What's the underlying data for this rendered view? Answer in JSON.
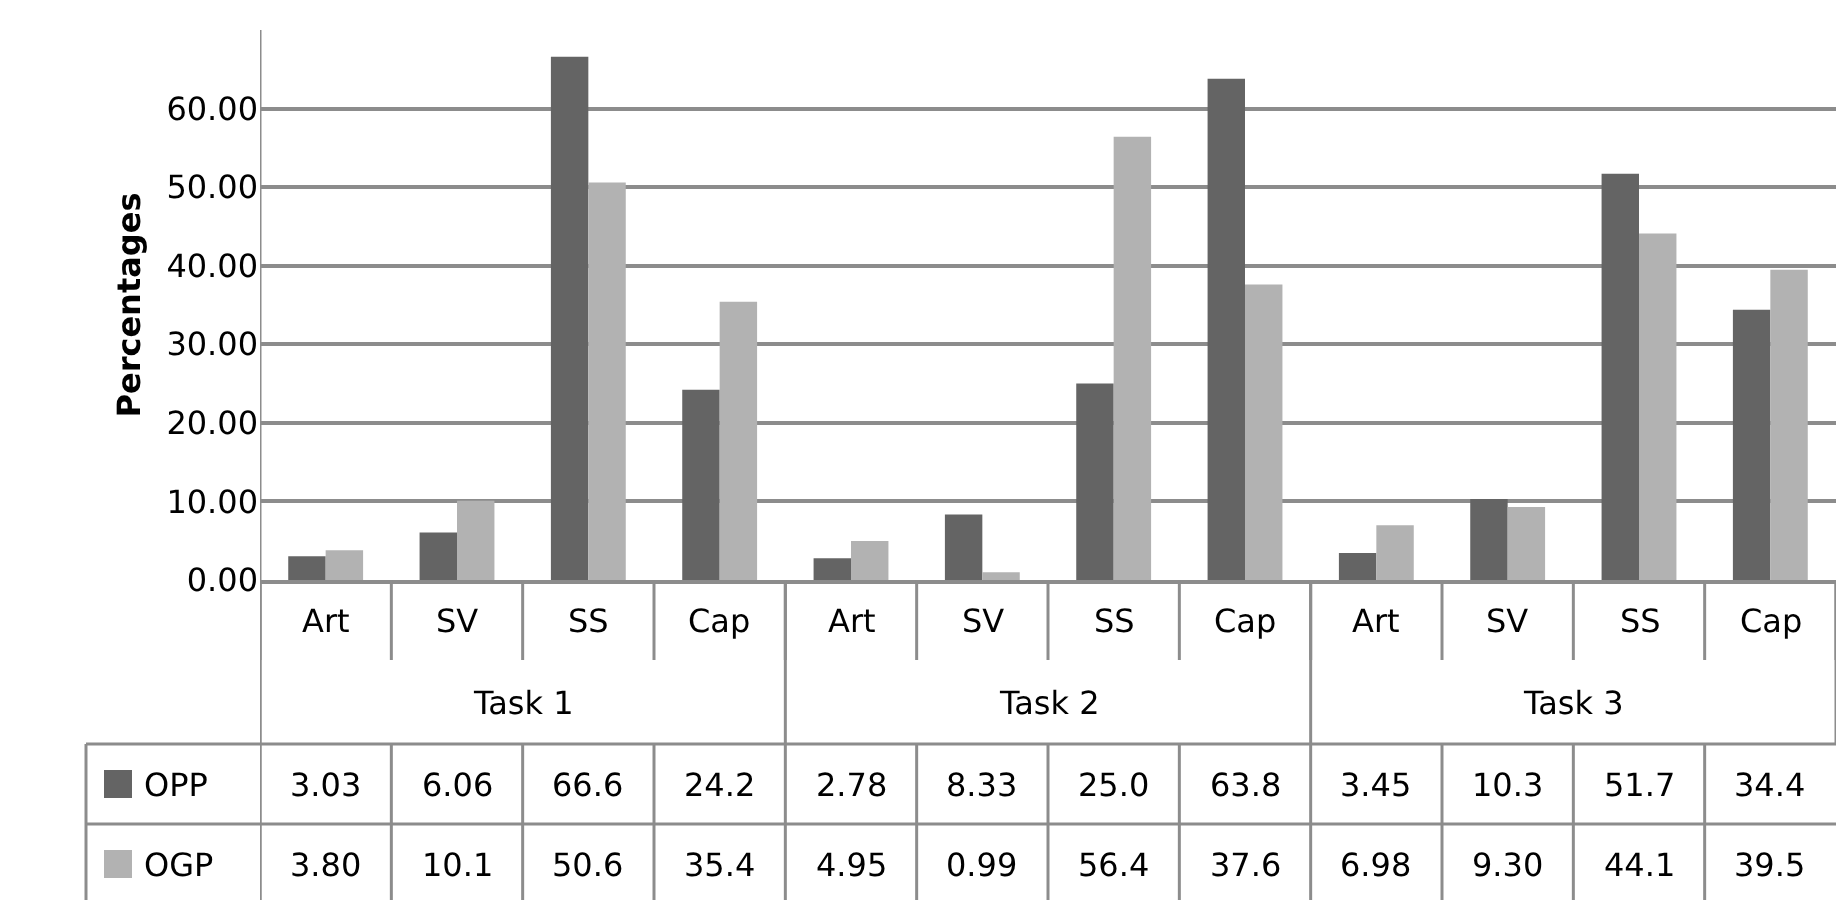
{
  "chart_data": {
    "type": "bar",
    "ylabel": "Percentages",
    "categories": [
      "Art",
      "SV",
      "SS",
      "Cap",
      "Art",
      "SV",
      "SS",
      "Cap",
      "Art",
      "SV",
      "SS",
      "Cap"
    ],
    "annotations": [
      "Task 1",
      "Task 2",
      "Task 3"
    ],
    "series": [
      {
        "name": "OPP",
        "color": "#646464",
        "values": [
          3.03,
          6.06,
          66.6,
          24.2,
          2.78,
          8.33,
          25.0,
          63.8,
          3.45,
          10.3,
          51.7,
          34.4
        ],
        "value_labels": [
          "3.03",
          "6.06",
          "66.6",
          "24.2",
          "2.78",
          "8.33",
          "25.0",
          "63.8",
          "3.45",
          "10.3",
          "51.7",
          "34.4"
        ]
      },
      {
        "name": "OGP",
        "color": "#b2b2b2",
        "values": [
          3.8,
          10.1,
          50.6,
          35.4,
          4.95,
          0.99,
          56.4,
          37.6,
          6.98,
          9.3,
          44.1,
          39.5
        ],
        "value_labels": [
          "3.80",
          "10.1",
          "50.6",
          "35.4",
          "4.95",
          "0.99",
          "56.4",
          "37.6",
          "6.98",
          "9.30",
          "44.1",
          "39.5"
        ]
      }
    ],
    "ylim": [
      0,
      70
    ],
    "yticks": [
      {
        "value": 0,
        "label": "0.00"
      },
      {
        "value": 10,
        "label": "10.00"
      },
      {
        "value": 20,
        "label": "20.00"
      },
      {
        "value": 30,
        "label": "30.00"
      },
      {
        "value": 40,
        "label": "40.00"
      },
      {
        "value": 50,
        "label": "50.00"
      },
      {
        "value": 60,
        "label": "60.00"
      }
    ],
    "grid": "y",
    "legend": "bottom left"
  }
}
